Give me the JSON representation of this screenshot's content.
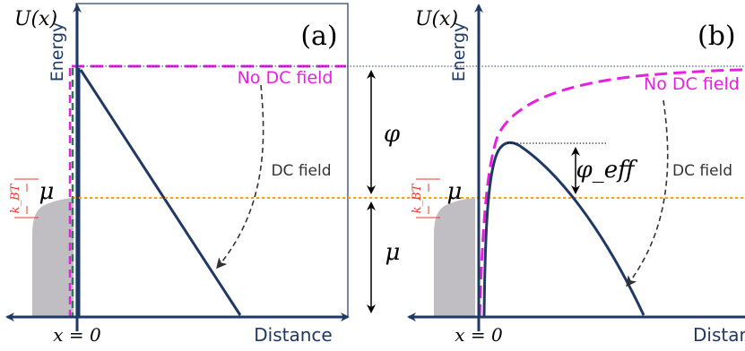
{
  "panel_a": {
    "tag": "(a)",
    "y_axis_symbol": "U(x)",
    "y_axis_label": "Energy",
    "x_axis_label": "Distance",
    "origin_label": "x = 0",
    "no_field_label": "No DC field",
    "field_label": "DC field",
    "mu_label": "μ",
    "kbt_label": "k_BT"
  },
  "panel_b": {
    "tag": "(b)",
    "y_axis_symbol": "U(x)",
    "y_axis_label": "Energy",
    "x_axis_label": "Distance",
    "origin_label": "x = 0",
    "no_field_label": "No DC field",
    "field_label": "DC field",
    "mu_label": "μ",
    "kbt_label": "k_BT",
    "phi_eff_label": "φ_eff"
  },
  "middle": {
    "phi_label": "φ",
    "mu_label": "μ"
  },
  "colors": {
    "navy": "#1f3864",
    "magenta": "#e81ee0",
    "orange": "#f0a020",
    "red": "#e8382a",
    "fermi_fill": "#c0bec2",
    "dark_dash": "#333333",
    "green_dash": "#2f7a4a"
  }
}
